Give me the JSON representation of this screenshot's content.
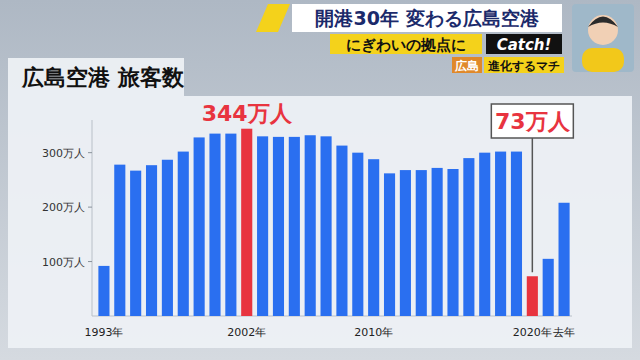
{
  "header": {
    "banner": "開港30年 変わる広島空港",
    "subtitle": "にぎわいの拠点に",
    "logo": "Catch!",
    "region": "広島",
    "corner": "進化するマチ"
  },
  "chart_data": {
    "type": "bar",
    "title": "広島空港 旅客数",
    "categories": [
      "1993年",
      null,
      null,
      null,
      null,
      null,
      null,
      null,
      null,
      "2002年",
      null,
      null,
      null,
      null,
      null,
      null,
      null,
      "2010年",
      null,
      null,
      null,
      null,
      null,
      null,
      null,
      null,
      null,
      "2020年",
      null,
      "去年"
    ],
    "values": [
      92,
      278,
      267,
      277,
      287,
      302,
      328,
      335,
      335,
      344,
      330,
      329,
      329,
      332,
      330,
      313,
      300,
      288,
      262,
      268,
      268,
      272,
      270,
      290,
      300,
      302,
      302,
      73,
      105,
      208
    ],
    "colors": [
      "#2a6ff0",
      "#2a6ff0",
      "#2a6ff0",
      "#2a6ff0",
      "#2a6ff0",
      "#2a6ff0",
      "#2a6ff0",
      "#2a6ff0",
      "#2a6ff0",
      "#e8343f",
      "#2a6ff0",
      "#2a6ff0",
      "#2a6ff0",
      "#2a6ff0",
      "#2a6ff0",
      "#2a6ff0",
      "#2a6ff0",
      "#2a6ff0",
      "#2a6ff0",
      "#2a6ff0",
      "#2a6ff0",
      "#2a6ff0",
      "#2a6ff0",
      "#2a6ff0",
      "#2a6ff0",
      "#2a6ff0",
      "#2a6ff0",
      "#e8343f",
      "#2a6ff0",
      "#2a6ff0"
    ],
    "ylim": [
      0,
      360
    ],
    "yticks": [
      {
        "value": 100,
        "label": "100万人"
      },
      {
        "value": 200,
        "label": "200万人"
      },
      {
        "value": 300,
        "label": "300万人"
      }
    ],
    "grid": false,
    "annotations": [
      {
        "text": "344万人",
        "value": 344,
        "category": "2002年"
      },
      {
        "text": "73万人",
        "value": 73,
        "category": "2020年"
      }
    ]
  }
}
